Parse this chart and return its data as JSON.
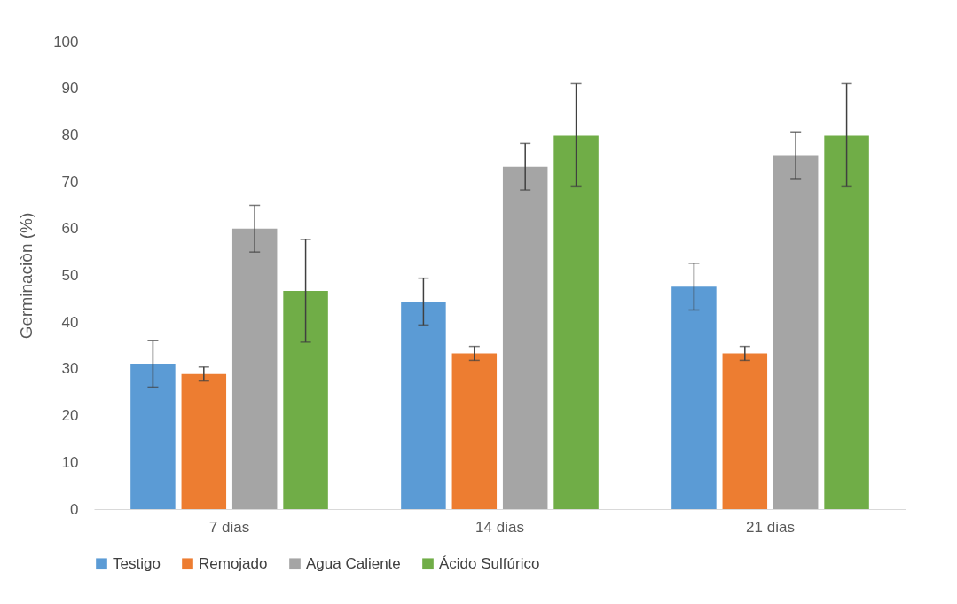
{
  "chart_data": {
    "type": "bar",
    "ylabel": "Germinaciòn (%)",
    "categories": [
      "7 dias",
      "14 dias",
      "21 dias"
    ],
    "series": [
      {
        "name": "Testigo",
        "color": "#5b9bd5",
        "values": [
          31.1,
          44.4,
          47.6
        ],
        "errors": [
          5,
          5,
          5
        ]
      },
      {
        "name": "Remojado",
        "color": "#ed7d31",
        "values": [
          28.9,
          33.3,
          33.3
        ],
        "errors": [
          1.5,
          1.5,
          1.5
        ]
      },
      {
        "name": "Agua Caliente",
        "color": "#a5a5a5",
        "values": [
          60,
          73.3,
          75.6
        ],
        "errors": [
          5,
          5,
          5
        ]
      },
      {
        "name": "Ácido Sulfúrico",
        "color": "#70ad47",
        "values": [
          46.7,
          80,
          80
        ],
        "errors": [
          11,
          11,
          11
        ]
      }
    ],
    "ylim": [
      0,
      100
    ],
    "yticks": [
      0,
      10,
      20,
      30,
      40,
      50,
      60,
      70,
      80,
      90,
      100
    ],
    "grid": false,
    "legend": "bottom"
  }
}
